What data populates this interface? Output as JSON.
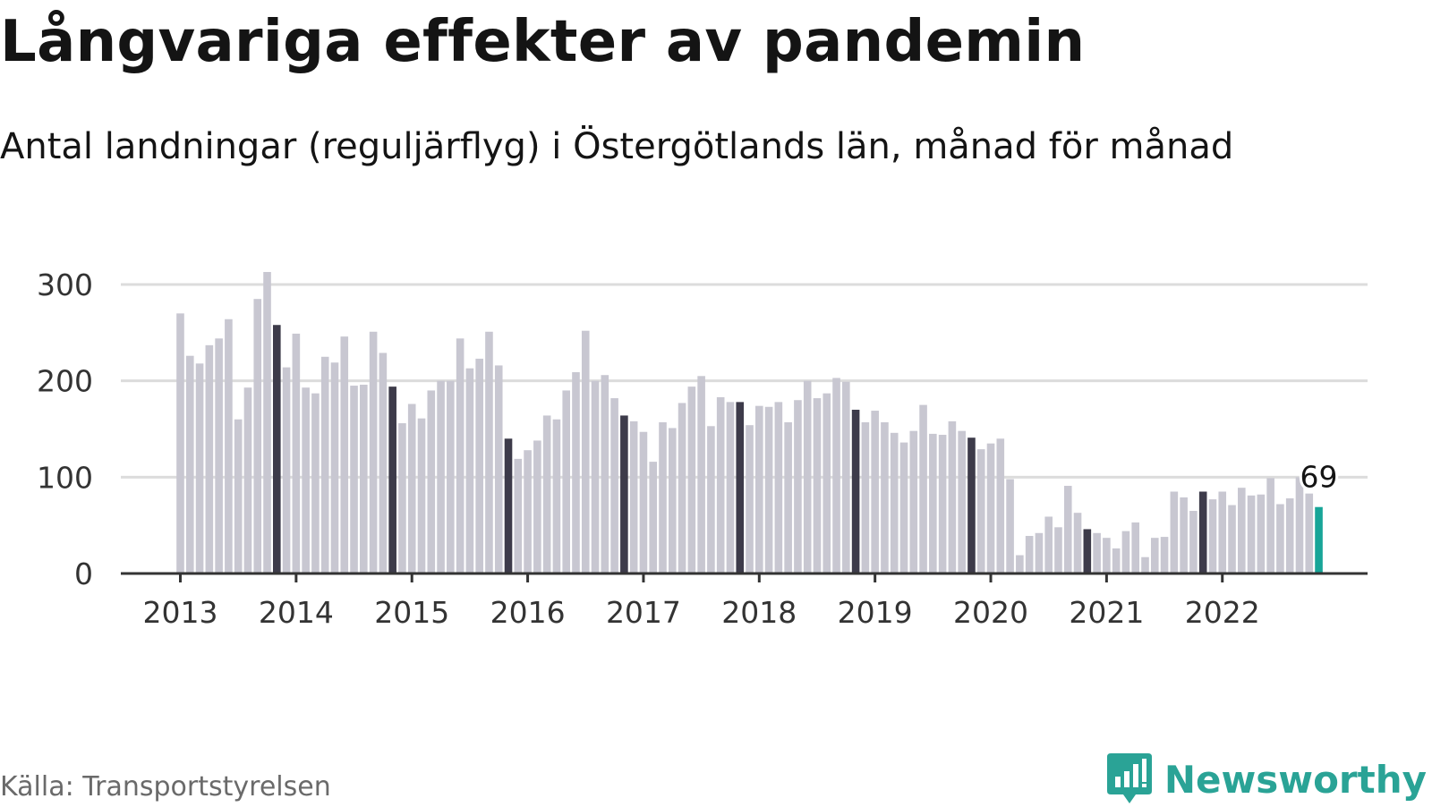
{
  "title": "Långvariga effekter av pandemin",
  "subtitle": "Antal landningar (reguljärflyg) i Östergötlands län, månad för månad",
  "source": "Källa: Transportstyrelsen",
  "brand": {
    "name": "Newsworthy",
    "icon": "chart-bubble-icon",
    "color": "#2aa396"
  },
  "colors": {
    "bar": "#c8c7d1",
    "highlight": "#3d3b4a",
    "latest": "#17a598",
    "grid": "#dcdcdc",
    "axis": "#333333"
  },
  "chart_data": {
    "type": "bar",
    "start": "2013-01",
    "x_tick_labels": [
      "2013",
      "2014",
      "2015",
      "2016",
      "2017",
      "2018",
      "2019",
      "2020",
      "2021",
      "2022"
    ],
    "y_ticks": [
      0,
      100,
      200,
      300
    ],
    "ylim": [
      0,
      320
    ],
    "grid": true,
    "highlight_month": "November",
    "latest_label": "69",
    "values": [
      270,
      226,
      218,
      237,
      244,
      264,
      160,
      193,
      285,
      313,
      258,
      214,
      249,
      193,
      187,
      225,
      219,
      246,
      195,
      196,
      251,
      229,
      194,
      156,
      176,
      161,
      190,
      200,
      200,
      244,
      213,
      223,
      251,
      216,
      140,
      119,
      128,
      138,
      164,
      160,
      190,
      209,
      252,
      200,
      206,
      182,
      164,
      158,
      147,
      116,
      157,
      151,
      177,
      194,
      205,
      153,
      183,
      178,
      178,
      154,
      174,
      173,
      178,
      157,
      180,
      200,
      182,
      187,
      203,
      199,
      170,
      157,
      169,
      157,
      146,
      136,
      148,
      175,
      145,
      144,
      158,
      148,
      141,
      129,
      135,
      140,
      98,
      19,
      39,
      42,
      59,
      48,
      91,
      63,
      46,
      42,
      37,
      26,
      44,
      53,
      17,
      37,
      38,
      85,
      79,
      65,
      85,
      77,
      85,
      71,
      89,
      81,
      82,
      99,
      72,
      78,
      100,
      83,
      69
    ]
  }
}
